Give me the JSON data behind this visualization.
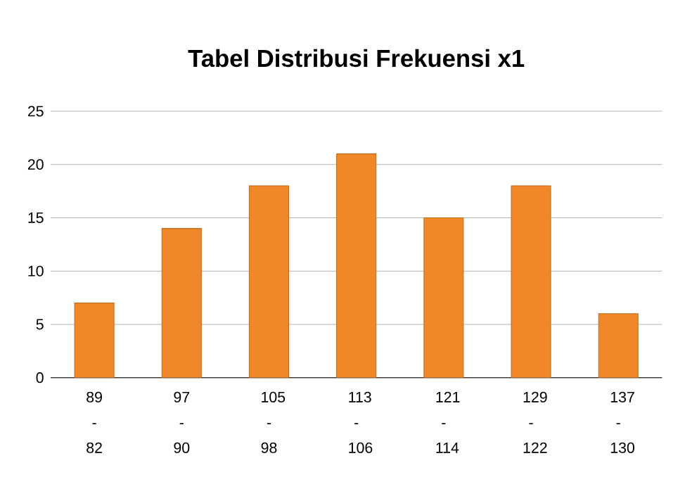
{
  "chart_data": {
    "type": "bar",
    "title": "Tabel Distribusi Frekuensi x1",
    "categories": [
      "89 - 82",
      "97 - 90",
      "105 - 98",
      "113 - 106",
      "121 - 114",
      "129 - 122",
      "137 - 130"
    ],
    "values": [
      7,
      14,
      18,
      21,
      15,
      18,
      6
    ],
    "color": "#f0882a",
    "ylim": [
      0,
      25
    ],
    "yticks": [
      0,
      5,
      10,
      15,
      20,
      25
    ],
    "grid": "y"
  }
}
